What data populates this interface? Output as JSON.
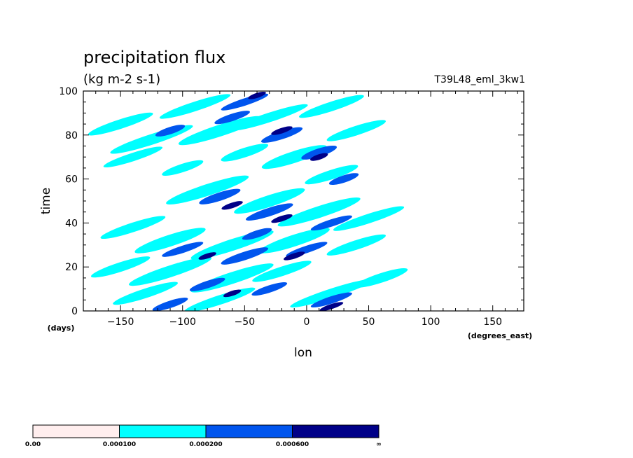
{
  "chart_data": {
    "type": "heatmap",
    "title": "precipitation flux",
    "units": "(kg m-2 s-1)",
    "run_label": "T39L48_eml_3kw1",
    "xlabel": "lon",
    "xunits": "(degrees_east)",
    "ylabel": "time",
    "yunits": "(days)",
    "xlim": [
      -180,
      175
    ],
    "ylim": [
      0,
      100
    ],
    "xticks": [
      -150,
      -100,
      -50,
      0,
      50,
      100,
      150
    ],
    "yticks": [
      0,
      20,
      40,
      60,
      80,
      100
    ],
    "contour_levels": [
      0.0,
      0.0001,
      0.0002,
      0.0006
    ],
    "colorbar": {
      "labels": [
        "0.00",
        "0.000100",
        "0.000200",
        "0.000600",
        "∞"
      ],
      "colors": [
        "#ffeeee",
        "#00ffff",
        "#0055ee",
        "#000088"
      ]
    },
    "features": [
      {
        "level": 1,
        "lon": -150,
        "day": 85,
        "len": 55,
        "h": 3
      },
      {
        "level": 1,
        "lon": -125,
        "day": 78,
        "len": 70,
        "h": 3.5
      },
      {
        "level": 1,
        "lon": -140,
        "day": 70,
        "len": 50,
        "h": 2.5
      },
      {
        "level": 1,
        "lon": -90,
        "day": 93,
        "len": 60,
        "h": 3
      },
      {
        "level": 1,
        "lon": -70,
        "day": 82,
        "len": 70,
        "h": 4
      },
      {
        "level": 1,
        "lon": -30,
        "day": 88,
        "len": 65,
        "h": 3
      },
      {
        "level": 1,
        "lon": 20,
        "day": 93,
        "len": 55,
        "h": 3
      },
      {
        "level": 1,
        "lon": 40,
        "day": 82,
        "len": 50,
        "h": 3
      },
      {
        "level": 1,
        "lon": -10,
        "day": 70,
        "len": 55,
        "h": 4
      },
      {
        "level": 1,
        "lon": 20,
        "day": 62,
        "len": 45,
        "h": 3
      },
      {
        "level": 1,
        "lon": -80,
        "day": 55,
        "len": 70,
        "h": 4
      },
      {
        "level": 1,
        "lon": -30,
        "day": 50,
        "len": 60,
        "h": 4
      },
      {
        "level": 1,
        "lon": 10,
        "day": 45,
        "len": 70,
        "h": 4
      },
      {
        "level": 1,
        "lon": 50,
        "day": 42,
        "len": 60,
        "h": 3
      },
      {
        "level": 1,
        "lon": -140,
        "day": 38,
        "len": 55,
        "h": 3
      },
      {
        "level": 1,
        "lon": -110,
        "day": 32,
        "len": 60,
        "h": 4
      },
      {
        "level": 1,
        "lon": -60,
        "day": 30,
        "len": 70,
        "h": 4
      },
      {
        "level": 1,
        "lon": -10,
        "day": 32,
        "len": 60,
        "h": 4
      },
      {
        "level": 1,
        "lon": 40,
        "day": 30,
        "len": 50,
        "h": 3
      },
      {
        "level": 1,
        "lon": -150,
        "day": 20,
        "len": 50,
        "h": 3
      },
      {
        "level": 1,
        "lon": -110,
        "day": 18,
        "len": 70,
        "h": 4
      },
      {
        "level": 1,
        "lon": -60,
        "day": 15,
        "len": 70,
        "h": 4
      },
      {
        "level": 1,
        "lon": -20,
        "day": 18,
        "len": 50,
        "h": 3
      },
      {
        "level": 1,
        "lon": 20,
        "day": 8,
        "len": 70,
        "h": 3
      },
      {
        "level": 1,
        "lon": -130,
        "day": 8,
        "len": 55,
        "h": 3
      },
      {
        "level": 1,
        "lon": -70,
        "day": 5,
        "len": 60,
        "h": 3
      },
      {
        "level": 1,
        "lon": 60,
        "day": 15,
        "len": 45,
        "h": 3
      },
      {
        "level": 1,
        "lon": -100,
        "day": 65,
        "len": 35,
        "h": 2.5
      },
      {
        "level": 1,
        "lon": -50,
        "day": 72,
        "len": 40,
        "h": 3
      },
      {
        "level": 2,
        "lon": -110,
        "day": 82,
        "len": 25,
        "h": 2
      },
      {
        "level": 2,
        "lon": -60,
        "day": 88,
        "len": 30,
        "h": 2
      },
      {
        "level": 2,
        "lon": -20,
        "day": 80,
        "len": 35,
        "h": 2.5
      },
      {
        "level": 2,
        "lon": 10,
        "day": 72,
        "len": 30,
        "h": 2.5
      },
      {
        "level": 2,
        "lon": -50,
        "day": 95,
        "len": 40,
        "h": 2
      },
      {
        "level": 2,
        "lon": -70,
        "day": 52,
        "len": 35,
        "h": 2.5
      },
      {
        "level": 2,
        "lon": -30,
        "day": 45,
        "len": 40,
        "h": 2.5
      },
      {
        "level": 2,
        "lon": 20,
        "day": 40,
        "len": 35,
        "h": 2
      },
      {
        "level": 2,
        "lon": -100,
        "day": 28,
        "len": 35,
        "h": 2
      },
      {
        "level": 2,
        "lon": -50,
        "day": 25,
        "len": 40,
        "h": 2.5
      },
      {
        "level": 2,
        "lon": 0,
        "day": 28,
        "len": 35,
        "h": 2
      },
      {
        "level": 2,
        "lon": -80,
        "day": 12,
        "len": 30,
        "h": 2
      },
      {
        "level": 2,
        "lon": -30,
        "day": 10,
        "len": 30,
        "h": 2
      },
      {
        "level": 2,
        "lon": 20,
        "day": 5,
        "len": 35,
        "h": 2
      },
      {
        "level": 2,
        "lon": -110,
        "day": 3,
        "len": 30,
        "h": 2
      },
      {
        "level": 2,
        "lon": 30,
        "day": 60,
        "len": 25,
        "h": 2
      },
      {
        "level": 2,
        "lon": -40,
        "day": 35,
        "len": 25,
        "h": 2
      },
      {
        "level": 3,
        "lon": -40,
        "day": 98,
        "len": 15,
        "h": 1
      },
      {
        "level": 3,
        "lon": -20,
        "day": 82,
        "len": 18,
        "h": 1.2
      },
      {
        "level": 3,
        "lon": 10,
        "day": 70,
        "len": 15,
        "h": 1.2
      },
      {
        "level": 3,
        "lon": -60,
        "day": 48,
        "len": 18,
        "h": 1.2
      },
      {
        "level": 3,
        "lon": -20,
        "day": 42,
        "len": 18,
        "h": 1.2
      },
      {
        "level": 3,
        "lon": -80,
        "day": 25,
        "len": 15,
        "h": 1
      },
      {
        "level": 3,
        "lon": -10,
        "day": 25,
        "len": 18,
        "h": 1.2
      },
      {
        "level": 3,
        "lon": 20,
        "day": 2,
        "len": 20,
        "h": 1
      },
      {
        "level": 3,
        "lon": -60,
        "day": 8,
        "len": 15,
        "h": 1
      }
    ]
  }
}
